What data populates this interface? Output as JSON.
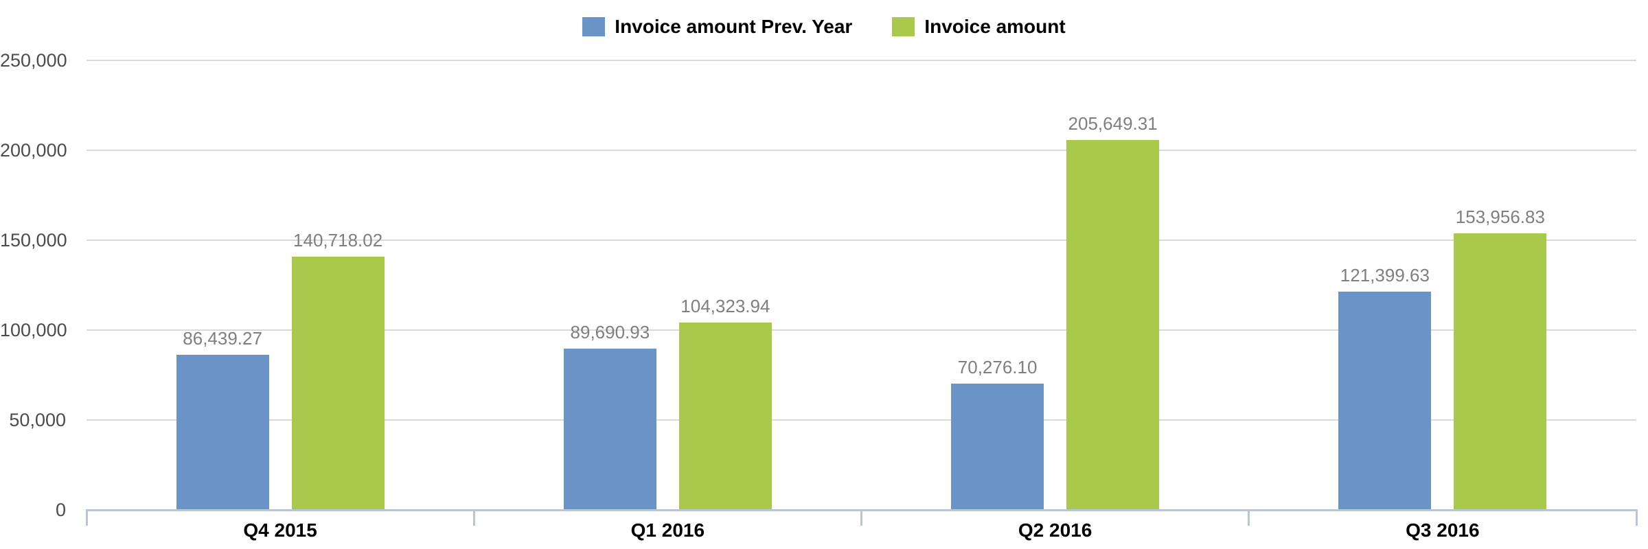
{
  "legend": {
    "items": [
      {
        "label": "Invoice amount Prev. Year",
        "color": "#6a93c8"
      },
      {
        "label": "Invoice amount",
        "color": "#a8c94b"
      }
    ]
  },
  "chart_data": {
    "type": "bar",
    "title": "",
    "xlabel": "",
    "ylabel": "",
    "categories": [
      "Q4 2015",
      "Q1 2016",
      "Q2 2016",
      "Q3 2016"
    ],
    "series": [
      {
        "name": "Invoice amount Prev. Year",
        "color": "#6a93c8",
        "values": [
          86439.27,
          89690.93,
          70276.1,
          121399.63
        ],
        "value_labels": [
          "86,439.27",
          "89,690.93",
          "70,276.10",
          "121,399.63"
        ]
      },
      {
        "name": "Invoice amount",
        "color": "#a8c94b",
        "values": [
          140718.02,
          104323.94,
          205649.31,
          153956.83
        ],
        "value_labels": [
          "140,718.02",
          "104,323.94",
          "205,649.31",
          "153,956.83"
        ]
      }
    ],
    "ylim": [
      0,
      250000
    ],
    "y_ticks": [
      {
        "value": 0,
        "label": "0"
      },
      {
        "value": 50000,
        "label": "50,000"
      },
      {
        "value": 100000,
        "label": "100,000"
      },
      {
        "value": 150000,
        "label": "150,000"
      },
      {
        "value": 200000,
        "label": "200,000"
      },
      {
        "value": 250000,
        "label": "250,000"
      }
    ],
    "grid": true,
    "legend_position": "top-center"
  },
  "colors": {
    "background": "#ffffff",
    "gridline": "#d9d9d9",
    "axis_line": "#b8c6d6",
    "value_label": "#7f7f7f",
    "y_tick_label": "#4c4c4c",
    "category_label": "#000000"
  }
}
